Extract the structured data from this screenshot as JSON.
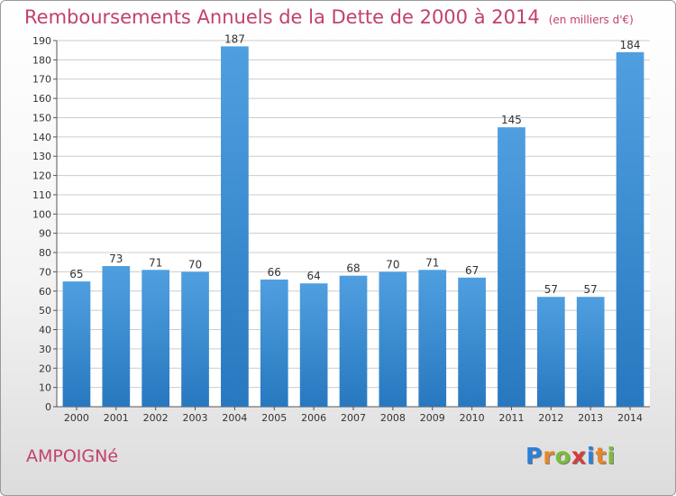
{
  "colors": {
    "title": "#c2416b",
    "bar": "#4f9fe0",
    "bar_dark": "#2878c0",
    "grid": "#cccccc"
  },
  "commune": "AMPOIGNé",
  "logo": {
    "letters": [
      "P",
      "r",
      "o",
      "x",
      "i",
      "t",
      "i"
    ],
    "colors": [
      "#2e7fd6",
      "#e8862a",
      "#7cbd3a",
      "#d73b3b",
      "#2e7fd6",
      "#e8862a",
      "#7cbd3a"
    ]
  },
  "chart_data": {
    "type": "bar",
    "title": "Remboursements Annuels de la Dette de 2000 à 2014",
    "subtitle": "(en milliers d'€)",
    "categories": [
      "2000",
      "2001",
      "2002",
      "2003",
      "2004",
      "2005",
      "2006",
      "2007",
      "2008",
      "2009",
      "2010",
      "2011",
      "2012",
      "2013",
      "2014"
    ],
    "values": [
      65,
      73,
      71,
      70,
      187,
      66,
      64,
      68,
      70,
      71,
      67,
      145,
      57,
      57,
      184
    ],
    "yticks": [
      0,
      10,
      20,
      30,
      40,
      50,
      60,
      70,
      80,
      90,
      100,
      110,
      120,
      130,
      140,
      150,
      160,
      170,
      180,
      190
    ],
    "ylim": [
      0,
      190
    ],
    "grid": true
  }
}
